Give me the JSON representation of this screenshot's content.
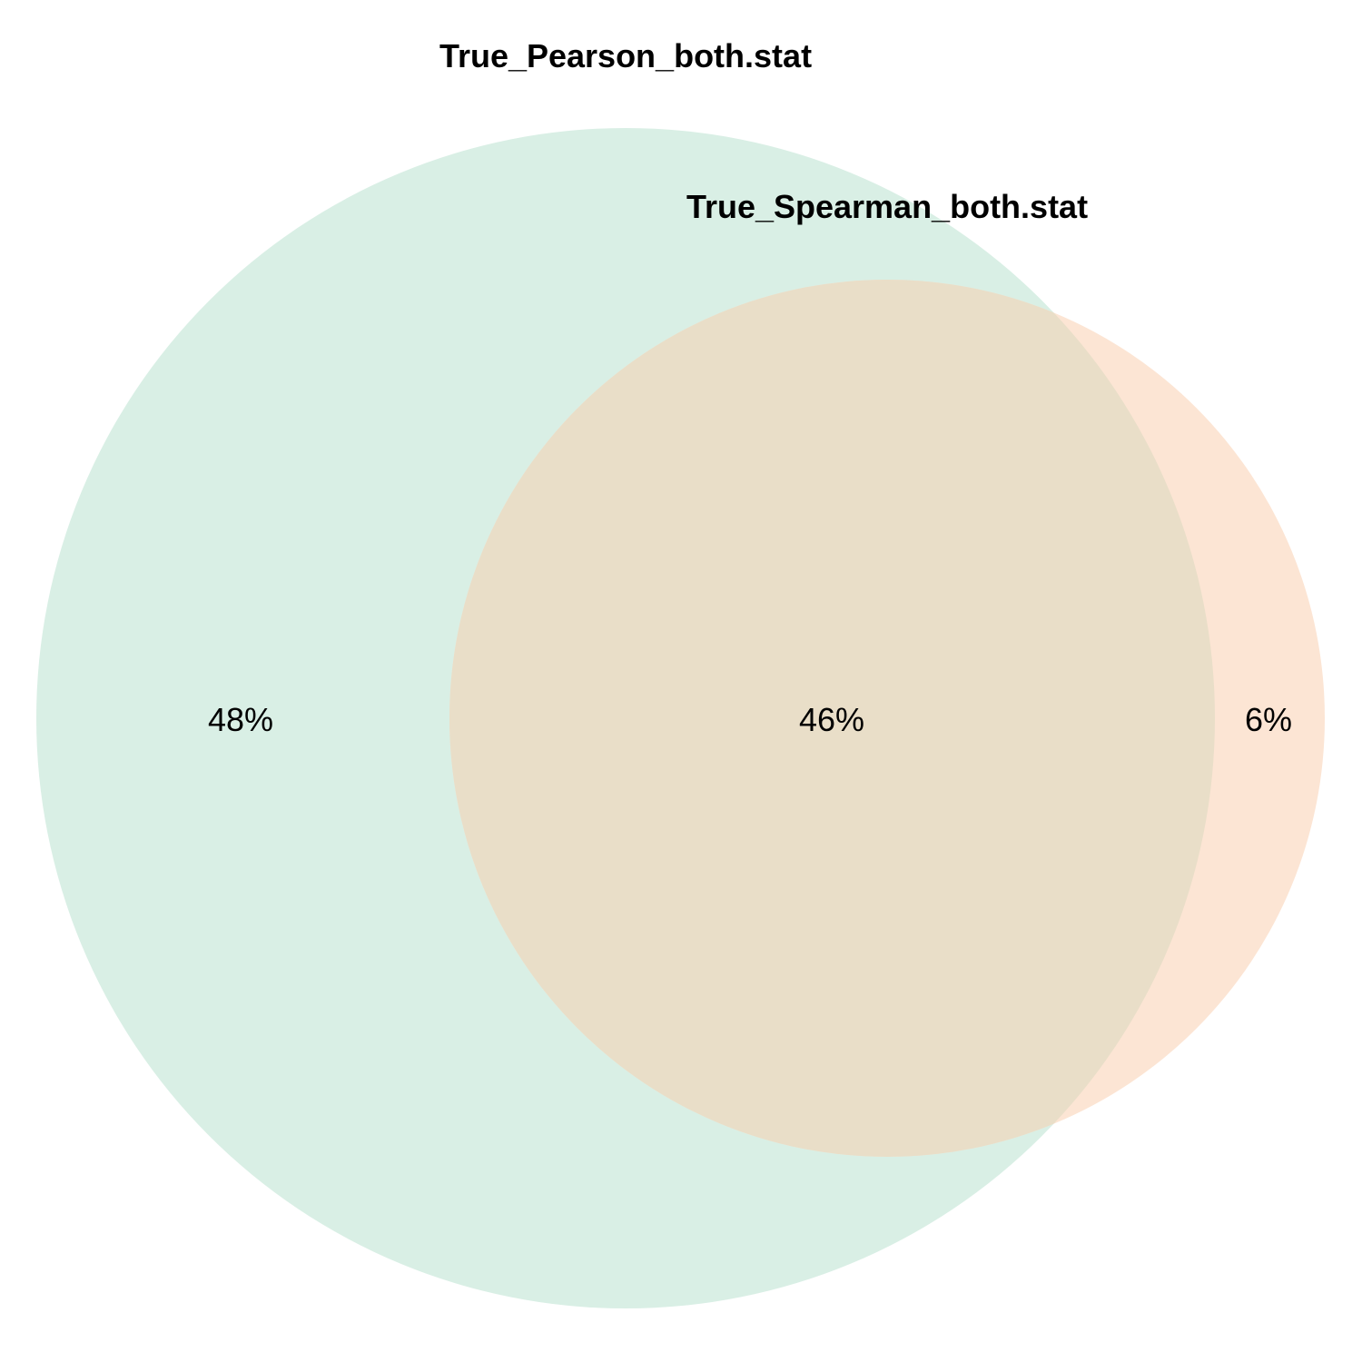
{
  "sets": [
    {
      "name": "True_Pearson_both.stat",
      "color": "#d9efe5"
    },
    {
      "name": "True_Spearman_both.stat",
      "color": "#fce5d4"
    }
  ],
  "overlap_color": "#e9dec8",
  "regions": {
    "pearson_only": "48%",
    "both": "46%",
    "spearman_only": "6%"
  }
}
